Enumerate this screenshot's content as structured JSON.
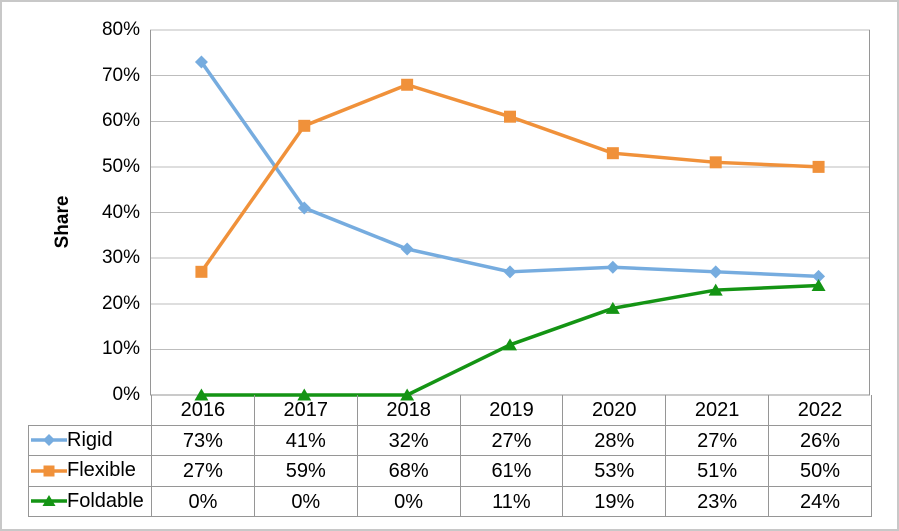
{
  "chart_data": {
    "type": "line",
    "title": "",
    "xlabel": "",
    "ylabel": "Share",
    "categories": [
      "2016",
      "2017",
      "2018",
      "2019",
      "2020",
      "2021",
      "2022"
    ],
    "series": [
      {
        "name": "Rigid",
        "color": "#76ACDF",
        "marker": "diamond",
        "values": [
          73,
          41,
          32,
          27,
          28,
          27,
          26
        ]
      },
      {
        "name": "Flexible",
        "color": "#F0913A",
        "marker": "square",
        "values": [
          27,
          59,
          68,
          61,
          53,
          51,
          50
        ]
      },
      {
        "name": "Foldable",
        "color": "#149414",
        "marker": "triangle",
        "values": [
          0,
          0,
          0,
          11,
          19,
          23,
          24
        ]
      }
    ],
    "ylim": [
      0,
      80
    ],
    "ytick_step": 10,
    "ytick_labels": [
      "0%",
      "10%",
      "20%",
      "30%",
      "40%",
      "50%",
      "60%",
      "70%",
      "80%"
    ],
    "grid": true,
    "legend_position": "data-table-left",
    "colors": {
      "gridline": "#BDBDBD",
      "axis_and_table_border": "#969696",
      "frame_border": "#C8C8C8",
      "text": "#000000"
    }
  },
  "table": {
    "rows": [
      {
        "label": "Rigid",
        "values": [
          "73%",
          "41%",
          "32%",
          "27%",
          "28%",
          "27%",
          "26%"
        ]
      },
      {
        "label": "Flexible",
        "values": [
          "27%",
          "59%",
          "68%",
          "61%",
          "53%",
          "51%",
          "50%"
        ]
      },
      {
        "label": "Foldable",
        "values": [
          "0%",
          "0%",
          "0%",
          "11%",
          "19%",
          "23%",
          "24%"
        ]
      }
    ]
  }
}
